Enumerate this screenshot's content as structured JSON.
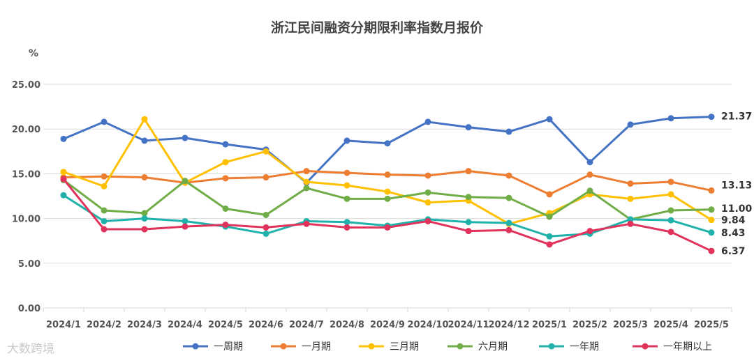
{
  "chart_data": {
    "type": "line",
    "title": "浙江民间融资分期限利率指数月报价",
    "ylabel": "%",
    "ylim": [
      0,
      25
    ],
    "yticks": [
      "0.00",
      "5.00",
      "10.00",
      "15.00",
      "20.00",
      "25.00"
    ],
    "grid": true,
    "legend_position": "bottom",
    "categories": [
      "2024/1",
      "2024/2",
      "2024/3",
      "2024/4",
      "2024/5",
      "2024/6",
      "2024/7",
      "2024/8",
      "2024/9",
      "2024/10",
      "2024/11",
      "2024/12",
      "2025/1",
      "2025/2",
      "2025/3",
      "2025/4",
      "2025/5"
    ],
    "series": [
      {
        "name": "一周期",
        "color": "#4472c4",
        "values": [
          18.9,
          20.8,
          18.7,
          19.0,
          18.3,
          17.7,
          14.0,
          18.7,
          18.4,
          20.8,
          20.2,
          19.7,
          21.1,
          16.3,
          20.5,
          21.2,
          21.37
        ],
        "end_label": "21.37"
      },
      {
        "name": "一月期",
        "color": "#ed7d31",
        "values": [
          14.6,
          14.7,
          14.6,
          14.0,
          14.5,
          14.6,
          15.3,
          15.1,
          14.9,
          14.8,
          15.3,
          14.8,
          12.7,
          14.9,
          13.9,
          14.1,
          13.13
        ],
        "end_label": "13.13"
      },
      {
        "name": "三月期",
        "color": "#ffc000",
        "values": [
          15.2,
          13.6,
          21.1,
          14.0,
          16.3,
          17.5,
          14.1,
          13.7,
          13.0,
          11.8,
          12.0,
          9.4,
          10.6,
          12.7,
          12.2,
          12.7,
          9.84
        ],
        "end_label": "9.84"
      },
      {
        "name": "六月期",
        "color": "#70ad47",
        "values": [
          14.3,
          10.9,
          10.6,
          14.2,
          11.1,
          10.4,
          13.4,
          12.2,
          12.2,
          12.9,
          12.4,
          12.3,
          10.2,
          13.1,
          9.9,
          10.9,
          11.0
        ],
        "end_label": "11.00"
      },
      {
        "name": "一年期",
        "color": "#20b2aa",
        "values": [
          12.6,
          9.7,
          10.0,
          9.7,
          9.1,
          8.3,
          9.7,
          9.6,
          9.2,
          9.9,
          9.6,
          9.5,
          8.0,
          8.3,
          9.9,
          9.8,
          8.43
        ],
        "end_label": "8.43"
      },
      {
        "name": "一年期以上",
        "color": "#e0325a",
        "values": [
          14.4,
          8.8,
          8.8,
          9.1,
          9.3,
          9.0,
          9.4,
          9.0,
          9.0,
          9.7,
          8.6,
          8.7,
          7.1,
          8.6,
          9.4,
          8.5,
          6.37
        ],
        "end_label": "6.37"
      }
    ]
  },
  "watermark": "大数跨境"
}
